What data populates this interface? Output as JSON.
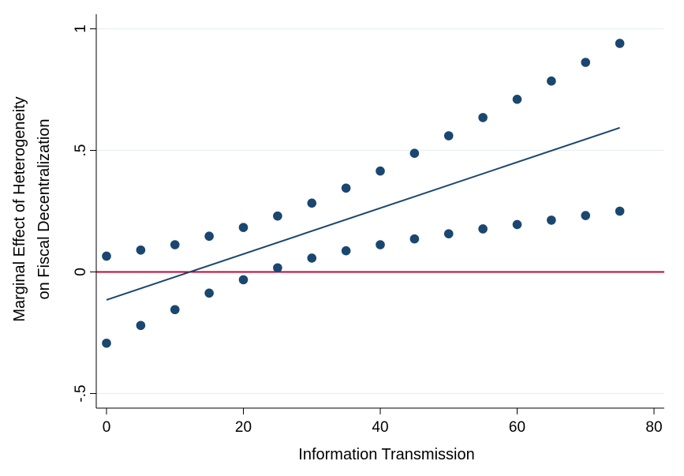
{
  "chart_data": {
    "type": "scatter",
    "xlabel": "Information Transmission",
    "ylabel_lines": [
      "Marginal Effect of Heterogeneity",
      "on Fiscal Decentralization"
    ],
    "xlim": [
      -1.5,
      81.5
    ],
    "ylim": [
      -0.56,
      1.06
    ],
    "x_ticks": [
      0,
      20,
      40,
      60,
      80
    ],
    "x_tick_labels": [
      "0",
      "20",
      "40",
      "60",
      "80"
    ],
    "y_ticks": [
      -0.5,
      0,
      0.5,
      1
    ],
    "y_tick_labels": [
      "-.5",
      "0",
      ".5",
      "1"
    ],
    "grid": "horizontal",
    "x": [
      0,
      5,
      10,
      15,
      20,
      25,
      30,
      35,
      40,
      45,
      50,
      55,
      60,
      65,
      70,
      75
    ],
    "series": [
      {
        "role": "upper-bound-points",
        "values": [
          0.065,
          0.09,
          0.112,
          0.147,
          0.183,
          0.23,
          0.283,
          0.345,
          0.415,
          0.488,
          0.56,
          0.635,
          0.71,
          0.785,
          0.862,
          0.94
        ],
        "color": "#1a476f"
      },
      {
        "role": "lower-bound-points",
        "values": [
          -0.293,
          -0.22,
          -0.155,
          -0.087,
          -0.032,
          0.017,
          0.057,
          0.087,
          0.112,
          0.136,
          0.157,
          0.177,
          0.195,
          0.213,
          0.232,
          0.25
        ],
        "color": "#1a476f"
      },
      {
        "role": "marginal-effect-line",
        "x": [
          0,
          75
        ],
        "values": [
          -0.115,
          0.593
        ],
        "color": "#1a476f"
      }
    ],
    "reference_line": {
      "y": 0,
      "color": "#c10534"
    },
    "colors": {
      "grid": "#eaf2f3",
      "axis": "#000000"
    }
  }
}
